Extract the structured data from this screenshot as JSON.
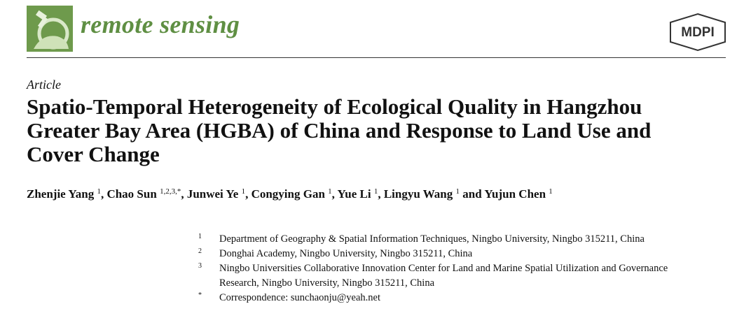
{
  "journal": {
    "name": "remote sensing",
    "publisher": "MDPI"
  },
  "article": {
    "type": "Article",
    "title_lines": [
      "Spatio-Temporal Heterogeneity of Ecological Quality in Hangzhou",
      "Greater Bay Area (HGBA) of China and Response to Land Use and",
      "Cover Change"
    ],
    "authors": [
      {
        "name": "Zhenjie Yang",
        "affiliations": "1",
        "separator": ","
      },
      {
        "name": "Chao Sun",
        "affiliations": "1,2,3,*",
        "separator": ","
      },
      {
        "name": "Junwei Ye",
        "affiliations": "1",
        "separator": ","
      },
      {
        "name": "Congying Gan",
        "affiliations": "1",
        "separator": ","
      },
      {
        "name": "Yue Li",
        "affiliations": "1",
        "separator": ","
      },
      {
        "name": "Lingyu Wang",
        "affiliations": "1",
        "separator": "and"
      },
      {
        "name": "Yujun Chen",
        "affiliations": "1"
      }
    ],
    "affiliations": [
      {
        "marker": "1",
        "text": "Department of Geography & Spatial Information Techniques, Ningbo University, Ningbo 315211, China"
      },
      {
        "marker": "2",
        "text": "Donghai Academy, Ningbo University, Ningbo 315211, China"
      },
      {
        "marker": "3",
        "text": "Ningbo Universities Collaborative Innovation Center for Land and Marine Spatial Utilization and Governance Research, Ningbo University, Ningbo 315211, China"
      },
      {
        "marker": "*",
        "text": "Correspondence: sunchaonju@yeah.net"
      }
    ]
  }
}
